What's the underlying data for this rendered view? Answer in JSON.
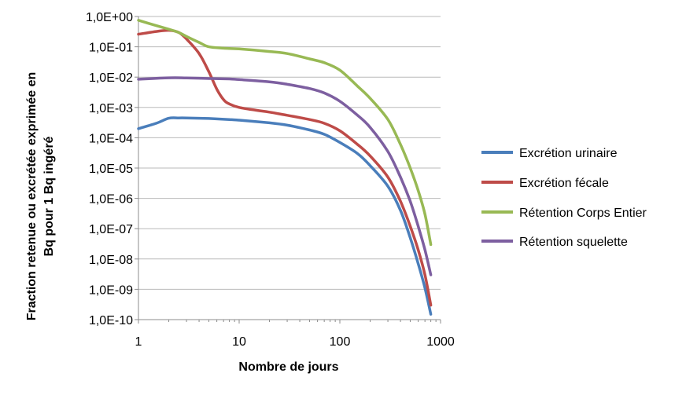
{
  "chart_data": {
    "type": "line",
    "title": "",
    "xlabel": "Nombre de jours",
    "ylabel": [
      "Fraction retenue ou excrétée exprimée en",
      "Bq pour 1 Bq ingéré"
    ],
    "x_scale": "log",
    "y_scale": "log",
    "xlim": [
      1,
      1000
    ],
    "ylim": [
      1e-10,
      1
    ],
    "x_ticks": [
      {
        "value": 1,
        "label": "1"
      },
      {
        "value": 10,
        "label": "10"
      },
      {
        "value": 100,
        "label": "100"
      },
      {
        "value": 1000,
        "label": "1000"
      }
    ],
    "y_ticks": [
      {
        "value": 1,
        "label": "1,0E+00"
      },
      {
        "value": 0.1,
        "label": "1,0E-01"
      },
      {
        "value": 0.01,
        "label": "1,0E-02"
      },
      {
        "value": 0.001,
        "label": "1,0E-03"
      },
      {
        "value": 0.0001,
        "label": "1,0E-04"
      },
      {
        "value": 1e-05,
        "label": "1,0E-05"
      },
      {
        "value": 1e-06,
        "label": "1,0E-06"
      },
      {
        "value": 1e-07,
        "label": "1,0E-07"
      },
      {
        "value": 1e-08,
        "label": "1,0E-08"
      },
      {
        "value": 1e-09,
        "label": "1,0E-09"
      },
      {
        "value": 1e-10,
        "label": "1,0E-10"
      }
    ],
    "grid": "horizontal",
    "legend_position": "right",
    "series": [
      {
        "name": "Excrétion urinaire",
        "color": "#4a7ebb",
        "points": [
          [
            1,
            0.0002
          ],
          [
            1.5,
            0.0003
          ],
          [
            2,
            0.00044
          ],
          [
            2.5,
            0.00045
          ],
          [
            3,
            0.00045
          ],
          [
            5,
            0.00043
          ],
          [
            8,
            0.0004
          ],
          [
            10,
            0.00038
          ],
          [
            20,
            0.00031
          ],
          [
            30,
            0.00026
          ],
          [
            50,
            0.00018
          ],
          [
            70,
            0.00013
          ],
          [
            100,
            7e-05
          ],
          [
            150,
            3e-05
          ],
          [
            200,
            1.2e-05
          ],
          [
            300,
            2.5e-06
          ],
          [
            400,
            4e-07
          ],
          [
            500,
            5e-08
          ],
          [
            600,
            7e-09
          ],
          [
            700,
            1.1e-09
          ],
          [
            800,
            1.5e-10
          ]
        ]
      },
      {
        "name": "Excrétion fécale",
        "color": "#be4b48",
        "points": [
          [
            1,
            0.26
          ],
          [
            1.5,
            0.32
          ],
          [
            2,
            0.35
          ],
          [
            2.5,
            0.3
          ],
          [
            3,
            0.18
          ],
          [
            4,
            0.06
          ],
          [
            5,
            0.015
          ],
          [
            6,
            0.004
          ],
          [
            7,
            0.0018
          ],
          [
            8,
            0.0013
          ],
          [
            10,
            0.001
          ],
          [
            15,
            0.0008
          ],
          [
            20,
            0.0007
          ],
          [
            30,
            0.00055
          ],
          [
            50,
            0.0004
          ],
          [
            70,
            0.0003
          ],
          [
            100,
            0.00017
          ],
          [
            150,
            6e-05
          ],
          [
            200,
            2.5e-05
          ],
          [
            300,
            5e-06
          ],
          [
            400,
            8e-07
          ],
          [
            500,
            1.2e-07
          ],
          [
            600,
            2e-08
          ],
          [
            700,
            3e-09
          ],
          [
            800,
            3e-10
          ]
        ]
      },
      {
        "name": "Rétention Corps Entier",
        "color": "#98b954",
        "points": [
          [
            1,
            0.75
          ],
          [
            1.5,
            0.5
          ],
          [
            2,
            0.38
          ],
          [
            2.5,
            0.3
          ],
          [
            3,
            0.22
          ],
          [
            4,
            0.14
          ],
          [
            5,
            0.1
          ],
          [
            7,
            0.09
          ],
          [
            10,
            0.085
          ],
          [
            20,
            0.07
          ],
          [
            30,
            0.06
          ],
          [
            50,
            0.04
          ],
          [
            70,
            0.03
          ],
          [
            100,
            0.017
          ],
          [
            150,
            0.005
          ],
          [
            200,
            0.002
          ],
          [
            300,
            0.0004
          ],
          [
            400,
            6e-05
          ],
          [
            500,
            1e-05
          ],
          [
            600,
            1.8e-06
          ],
          [
            700,
            3e-07
          ],
          [
            800,
            3e-08
          ]
        ]
      },
      {
        "name": "Rétention squelette",
        "color": "#7d5fa0",
        "points": [
          [
            1,
            0.0085
          ],
          [
            2,
            0.0095
          ],
          [
            3,
            0.0094
          ],
          [
            5,
            0.009
          ],
          [
            8,
            0.0087
          ],
          [
            10,
            0.0083
          ],
          [
            20,
            0.007
          ],
          [
            30,
            0.0058
          ],
          [
            50,
            0.0042
          ],
          [
            70,
            0.003
          ],
          [
            100,
            0.0016
          ],
          [
            150,
            0.00055
          ],
          [
            200,
            0.00022
          ],
          [
            300,
            3.5e-05
          ],
          [
            400,
            5e-06
          ],
          [
            500,
            8e-07
          ],
          [
            600,
            1.2e-07
          ],
          [
            700,
            2e-08
          ],
          [
            800,
            3e-09
          ]
        ]
      }
    ]
  }
}
